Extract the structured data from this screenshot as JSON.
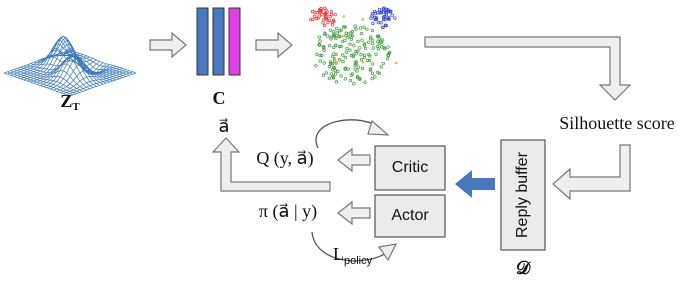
{
  "inputs": {
    "latent": {
      "label": "Z",
      "subscript": "T"
    },
    "clusters": {
      "label": "C"
    }
  },
  "metric": "Silhouette score",
  "agent": {
    "critic": "Critic",
    "actor": "Actor",
    "q_function": "Q (y, a⃗)",
    "policy": "π (a⃗ | y)",
    "action": "a⃗",
    "loss": {
      "label": "L",
      "subscript": "policy"
    }
  },
  "buffer": {
    "label": "Reply buffer",
    "symbol": "𝒟"
  }
}
